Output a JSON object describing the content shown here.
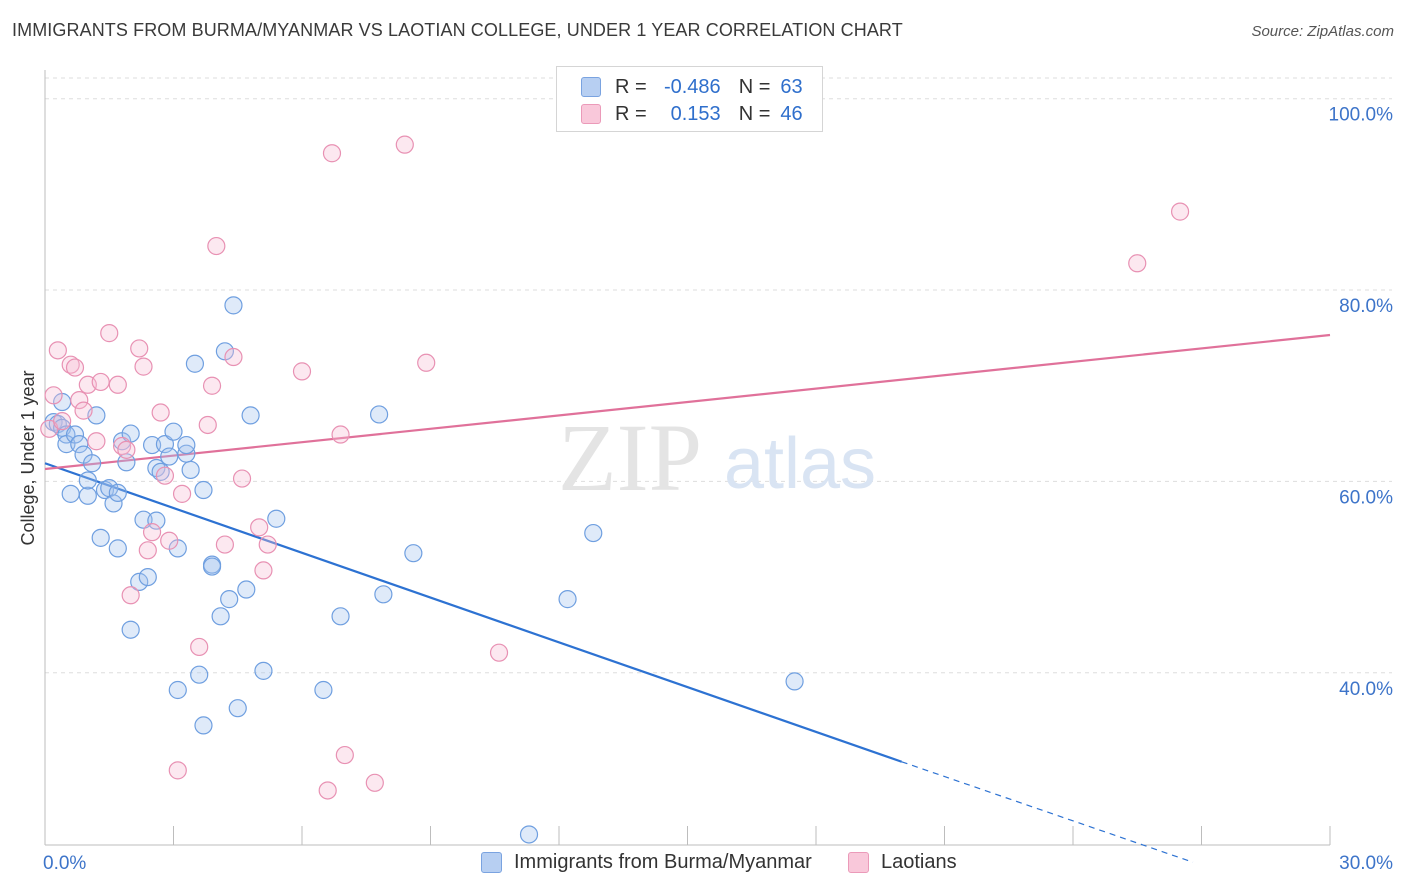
{
  "title": "IMMIGRANTS FROM BURMA/MYANMAR VS LAOTIAN COLLEGE, UNDER 1 YEAR CORRELATION CHART",
  "source": "Source: ZipAtlas.com",
  "watermark": {
    "zip": "ZIP",
    "atlas": "atlas"
  },
  "colors": {
    "blue": "#6f9fe0",
    "blue_fill": "rgba(164,196,238,0.35)",
    "blue_line": "#2d72d2",
    "pink": "#e891b3",
    "pink_fill": "rgba(246,190,212,0.35)",
    "pink_line": "#e0719a",
    "axis_label": "#3d74c9",
    "grid": "#dddddd"
  },
  "legend": {
    "rows": [
      {
        "r_label": "R =",
        "r_value": "-0.486",
        "n_label": "N =",
        "n_value": "63"
      },
      {
        "r_label": "R =",
        "r_value": "0.153",
        "n_label": "N =",
        "n_value": "46"
      }
    ]
  },
  "bottom_legend": {
    "series1": "Immigrants from Burma/Myanmar",
    "series2": "Laotians"
  },
  "chart_data": {
    "type": "scatter",
    "title": "IMMIGRANTS FROM BURMA/MYANMAR VS LAOTIAN COLLEGE, UNDER 1 YEAR CORRELATION CHART",
    "xlabel": "",
    "ylabel": "College, Under 1 year",
    "xlim": [
      0,
      30
    ],
    "ylim": [
      22,
      103
    ],
    "x_tick_labels": [
      "0.0%",
      "30.0%"
    ],
    "y_ticks": [
      40,
      60,
      80,
      100
    ],
    "y_tick_labels": [
      "40.0%",
      "60.0%",
      "80.0%",
      "100.0%"
    ],
    "grid": true,
    "legend_position": "top-center",
    "series": [
      {
        "name": "Immigrants from Burma/Myanmar",
        "color": "#6f9fe0",
        "points": [
          [
            0.2,
            66.2
          ],
          [
            0.3,
            66.0
          ],
          [
            0.4,
            65.6
          ],
          [
            0.5,
            64.9
          ],
          [
            0.4,
            68.3
          ],
          [
            0.5,
            63.9
          ],
          [
            0.7,
            64.9
          ],
          [
            0.6,
            58.7
          ],
          [
            0.8,
            63.9
          ],
          [
            0.9,
            62.8
          ],
          [
            1.0,
            58.5
          ],
          [
            1.1,
            61.9
          ],
          [
            1.2,
            66.9
          ],
          [
            1.0,
            60.1
          ],
          [
            1.3,
            54.1
          ],
          [
            1.4,
            59.1
          ],
          [
            1.5,
            59.3
          ],
          [
            1.6,
            57.7
          ],
          [
            1.7,
            58.8
          ],
          [
            1.7,
            53.0
          ],
          [
            1.8,
            64.2
          ],
          [
            1.9,
            62.0
          ],
          [
            2.0,
            65.0
          ],
          [
            2.0,
            44.5
          ],
          [
            2.2,
            49.5
          ],
          [
            2.3,
            56.0
          ],
          [
            2.4,
            50.0
          ],
          [
            2.5,
            63.8
          ],
          [
            2.6,
            55.9
          ],
          [
            2.6,
            61.4
          ],
          [
            2.7,
            61.0
          ],
          [
            2.8,
            63.9
          ],
          [
            2.9,
            62.6
          ],
          [
            3.0,
            65.2
          ],
          [
            3.1,
            53.0
          ],
          [
            3.1,
            38.2
          ],
          [
            3.3,
            62.9
          ],
          [
            3.3,
            63.8
          ],
          [
            3.4,
            61.2
          ],
          [
            3.5,
            72.3
          ],
          [
            3.6,
            39.8
          ],
          [
            3.7,
            34.5
          ],
          [
            3.7,
            59.1
          ],
          [
            3.9,
            51.3
          ],
          [
            3.9,
            51.1
          ],
          [
            4.1,
            45.9
          ],
          [
            4.2,
            73.6
          ],
          [
            4.3,
            47.7
          ],
          [
            4.4,
            78.4
          ],
          [
            4.5,
            36.3
          ],
          [
            4.7,
            48.7
          ],
          [
            4.8,
            66.9
          ],
          [
            5.1,
            40.2
          ],
          [
            5.4,
            56.1
          ],
          [
            6.5,
            38.2
          ],
          [
            6.9,
            45.9
          ],
          [
            7.8,
            67.0
          ],
          [
            7.9,
            48.2
          ],
          [
            8.6,
            52.5
          ],
          [
            12.2,
            47.7
          ],
          [
            12.8,
            54.6
          ],
          [
            17.5,
            39.1
          ],
          [
            11.3,
            23.1
          ]
        ]
      },
      {
        "name": "Laotians",
        "color": "#e891b3",
        "points": [
          [
            0.1,
            65.5
          ],
          [
            0.2,
            69.0
          ],
          [
            0.3,
            73.7
          ],
          [
            0.4,
            66.3
          ],
          [
            0.6,
            72.2
          ],
          [
            0.7,
            71.9
          ],
          [
            0.8,
            68.5
          ],
          [
            0.9,
            67.4
          ],
          [
            1.0,
            70.1
          ],
          [
            1.2,
            64.2
          ],
          [
            1.3,
            70.4
          ],
          [
            1.5,
            75.5
          ],
          [
            1.7,
            70.1
          ],
          [
            1.8,
            63.7
          ],
          [
            1.9,
            63.3
          ],
          [
            2.0,
            48.1
          ],
          [
            2.2,
            73.9
          ],
          [
            2.3,
            72.0
          ],
          [
            2.4,
            52.8
          ],
          [
            2.5,
            54.7
          ],
          [
            2.7,
            67.2
          ],
          [
            2.8,
            60.6
          ],
          [
            2.9,
            53.8
          ],
          [
            3.2,
            58.7
          ],
          [
            3.1,
            29.8
          ],
          [
            3.6,
            42.7
          ],
          [
            3.8,
            65.9
          ],
          [
            3.9,
            70.0
          ],
          [
            4.0,
            84.6
          ],
          [
            4.2,
            53.4
          ],
          [
            4.4,
            73.0
          ],
          [
            4.6,
            60.3
          ],
          [
            5.0,
            55.2
          ],
          [
            5.1,
            50.7
          ],
          [
            5.2,
            53.4
          ],
          [
            6.0,
            71.5
          ],
          [
            6.6,
            27.7
          ],
          [
            6.7,
            94.3
          ],
          [
            6.9,
            64.9
          ],
          [
            7.0,
            31.4
          ],
          [
            7.7,
            28.5
          ],
          [
            8.4,
            95.2
          ],
          [
            8.9,
            72.4
          ],
          [
            10.6,
            42.1
          ],
          [
            25.5,
            82.8
          ],
          [
            26.5,
            88.2
          ]
        ]
      }
    ],
    "trend_lines": [
      {
        "series": "Immigrants from Burma/Myanmar",
        "x1": 0,
        "y1": 61.9,
        "x2": 20,
        "y2": 30.7,
        "dashed_to_x": 26.8,
        "dashed_to_y": 20.2
      },
      {
        "series": "Laotians",
        "x1": 0,
        "y1": 61.3,
        "x2": 30,
        "y2": 75.3
      }
    ]
  }
}
